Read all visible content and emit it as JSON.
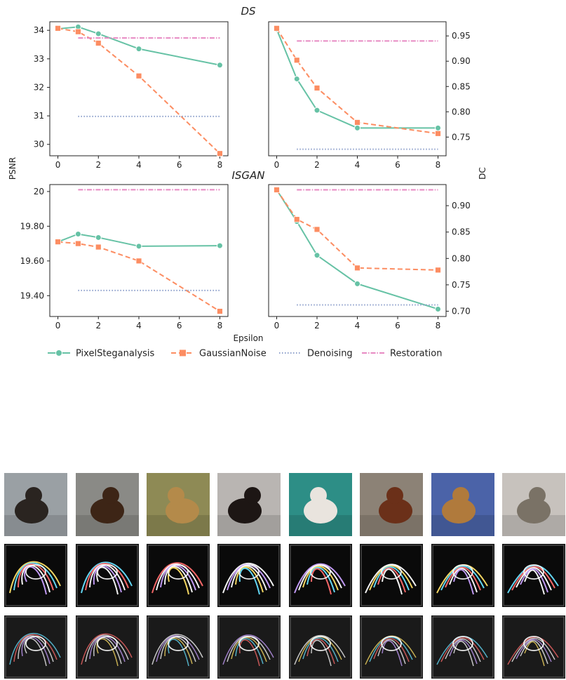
{
  "chart_data": [
    {
      "type": "line",
      "title": "DS",
      "ylabel": "PSNR",
      "xlabel": "",
      "x_ticks": [
        0,
        2,
        4,
        6,
        8
      ],
      "y_ticks": [
        30,
        31,
        32,
        33,
        34
      ],
      "xlim": [
        -0.4,
        8.4
      ],
      "ylim": [
        29.6,
        34.3
      ],
      "series": [
        {
          "name": "PixelSteganalysis",
          "x": [
            0,
            1,
            2,
            4,
            8
          ],
          "y": [
            34.05,
            34.12,
            33.88,
            33.35,
            32.78
          ]
        },
        {
          "name": "GaussianNoise",
          "x": [
            0,
            1,
            2,
            4,
            8
          ],
          "y": [
            34.07,
            33.95,
            33.55,
            32.4,
            29.68
          ]
        },
        {
          "name": "Denoising",
          "x": [
            1,
            8
          ],
          "y": [
            30.98,
            30.98
          ]
        },
        {
          "name": "Restoration",
          "x": [
            1,
            8
          ],
          "y": [
            33.73,
            33.73
          ]
        }
      ]
    },
    {
      "type": "line",
      "title": "",
      "ylabel": "",
      "xlabel": "",
      "y_axis_side": "right",
      "x_ticks": [
        0,
        2,
        4,
        6,
        8
      ],
      "y_ticks": [
        0.75,
        0.8,
        0.85,
        0.9,
        0.95
      ],
      "xlim": [
        -0.4,
        8.4
      ],
      "ylim": [
        0.713,
        0.978
      ],
      "series": [
        {
          "name": "PixelSteganalysis",
          "x": [
            0,
            1,
            2,
            4,
            8
          ],
          "y": [
            0.963,
            0.865,
            0.803,
            0.768,
            0.768
          ]
        },
        {
          "name": "GaussianNoise",
          "x": [
            0,
            1,
            2,
            4,
            8
          ],
          "y": [
            0.965,
            0.902,
            0.847,
            0.779,
            0.757
          ]
        },
        {
          "name": "Denoising",
          "x": [
            1,
            8
          ],
          "y": [
            0.726,
            0.726
          ]
        },
        {
          "name": "Restoration",
          "x": [
            1,
            8
          ],
          "y": [
            0.94,
            0.94
          ]
        }
      ]
    },
    {
      "type": "line",
      "title": "ISGAN",
      "ylabel": "",
      "xlabel": "",
      "x_ticks": [
        0,
        2,
        4,
        6,
        8
      ],
      "y_ticks": [
        19.4,
        19.6,
        19.8,
        20.0
      ],
      "xlim": [
        -0.4,
        8.4
      ],
      "ylim": [
        19.28,
        20.04
      ],
      "series": [
        {
          "name": "PixelSteganalysis",
          "x": [
            0,
            1,
            2,
            4,
            8
          ],
          "y": [
            19.71,
            19.755,
            19.735,
            19.685,
            19.688
          ]
        },
        {
          "name": "GaussianNoise",
          "x": [
            0,
            1,
            2,
            4,
            8
          ],
          "y": [
            19.71,
            19.7,
            19.68,
            19.6,
            19.31
          ]
        },
        {
          "name": "Denoising",
          "x": [
            1,
            8
          ],
          "y": [
            19.43,
            19.43
          ]
        },
        {
          "name": "Restoration",
          "x": [
            1,
            8
          ],
          "y": [
            20.01,
            20.01
          ]
        }
      ]
    },
    {
      "type": "line",
      "title": "",
      "ylabel": "DC",
      "xlabel": "Epsilon",
      "y_axis_side": "right",
      "x_ticks": [
        0,
        2,
        4,
        6,
        8
      ],
      "y_ticks": [
        0.7,
        0.75,
        0.8,
        0.85,
        0.9
      ],
      "xlim": [
        -0.4,
        8.4
      ],
      "ylim": [
        0.69,
        0.94
      ],
      "series": [
        {
          "name": "PixelSteganalysis",
          "x": [
            0,
            1,
            2,
            4,
            8
          ],
          "y": [
            0.93,
            0.87,
            0.806,
            0.752,
            0.704
          ]
        },
        {
          "name": "GaussianNoise",
          "x": [
            0,
            1,
            2,
            4,
            8
          ],
          "y": [
            0.93,
            0.874,
            0.855,
            0.782,
            0.778
          ]
        },
        {
          "name": "Denoising",
          "x": [
            1,
            8
          ],
          "y": [
            0.712,
            0.712
          ]
        },
        {
          "name": "Restoration",
          "x": [
            1,
            8
          ],
          "y": [
            0.93,
            0.93
          ]
        }
      ]
    }
  ],
  "legend": {
    "placement": "bottom",
    "items": [
      {
        "label": "PixelSteganalysis",
        "color": "#66c2a5",
        "style": "solid",
        "marker": "circle"
      },
      {
        "label": "GaussianNoise",
        "color": "#fc8d62",
        "style": "dashed",
        "marker": "square"
      },
      {
        "label": "Denoising",
        "color": "#8da0cb",
        "style": "dotted",
        "marker": "none"
      },
      {
        "label": "Restoration",
        "color": "#e78ac3",
        "style": "dashdot",
        "marker": "none"
      }
    ]
  },
  "colors": {
    "PixelSteganalysis": "#66c2a5",
    "GaussianNoise": "#fc8d62",
    "Denoising": "#8da0cb",
    "Restoration": "#e78ac3"
  },
  "image_grid": {
    "rows": 3,
    "columns": 8,
    "row_kinds": [
      "photo",
      "edge-map",
      "edge-map"
    ],
    "photo_subjects": [
      "dog",
      "dog",
      "dog",
      "dog",
      "dog",
      "dog",
      "dog",
      "cat"
    ],
    "photo_colors": {
      "backgrounds": [
        "#9aa0a4",
        "#8a8a86",
        "#8e8a55",
        "#b9b5b2",
        "#2d8e86",
        "#8c8276",
        "#4b63a8",
        "#c7c2bd"
      ],
      "subjects": [
        "#2a2420",
        "#3d2516",
        "#b48a4a",
        "#1d1614",
        "#e9e4de",
        "#6b3019",
        "#b07a3c",
        "#7a7266"
      ]
    }
  }
}
